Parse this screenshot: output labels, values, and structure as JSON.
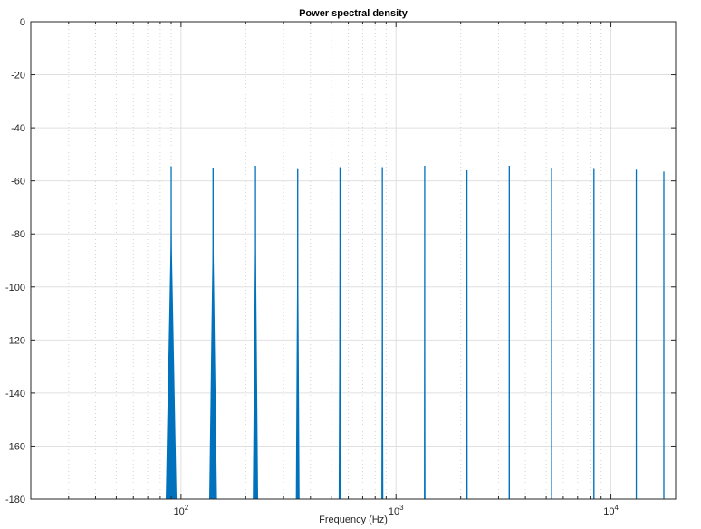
{
  "chart_data": {
    "type": "line",
    "title": "Power spectral density",
    "xlabel": "Frequency (Hz)",
    "ylabel": "",
    "x_scale": "log",
    "xlim": [
      20,
      20000
    ],
    "ylim": [
      -180,
      0
    ],
    "grid": true,
    "legend": "none",
    "x_major_ticks": [
      100,
      1000,
      10000
    ],
    "x_tick_labels": [
      {
        "base": "10",
        "exp": "2"
      },
      {
        "base": "10",
        "exp": "3"
      },
      {
        "base": "10",
        "exp": "4"
      }
    ],
    "y_ticks": [
      0,
      -20,
      -40,
      -60,
      -80,
      -100,
      -120,
      -140,
      -160,
      -180
    ],
    "y_tick_labels": [
      "0",
      "-20",
      "-40",
      "-60",
      "-80",
      "-100",
      "-120",
      "-140",
      "-160",
      "-180"
    ],
    "series": [
      {
        "color": "#0072bd",
        "peaks": [
          {
            "freq": 90,
            "db": -54.5,
            "spread": 0.04
          },
          {
            "freq": 141,
            "db": -55.3,
            "spread": 0.028
          },
          {
            "freq": 222,
            "db": -54.3,
            "spread": 0.018
          },
          {
            "freq": 349,
            "db": -55.6,
            "spread": 0.012
          },
          {
            "freq": 549,
            "db": -54.8,
            "spread": 0.008
          },
          {
            "freq": 864,
            "db": -54.8,
            "spread": 0.005
          },
          {
            "freq": 1360,
            "db": -54.3,
            "spread": 0.003
          },
          {
            "freq": 2139,
            "db": -56.0,
            "spread": 0.002
          },
          {
            "freq": 3366,
            "db": -54.3,
            "spread": 0.0015
          },
          {
            "freq": 5297,
            "db": -55.3,
            "spread": 0.001
          },
          {
            "freq": 8337,
            "db": -55.5,
            "spread": 0.0008
          },
          {
            "freq": 13120,
            "db": -55.8,
            "spread": 0.0006
          },
          {
            "freq": 20640,
            "db": -56.5,
            "spread": 0.0004
          }
        ]
      }
    ]
  }
}
